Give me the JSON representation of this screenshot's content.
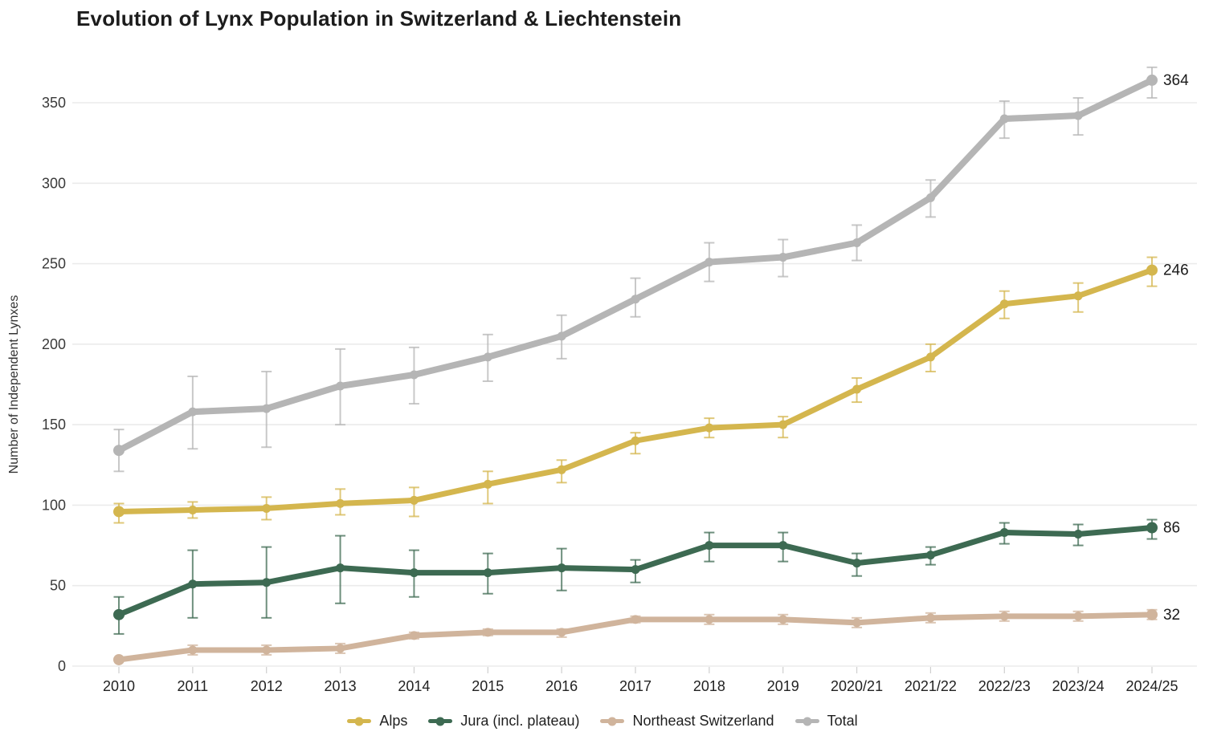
{
  "chart_data": {
    "type": "line",
    "title": "Evolution of Lynx Population in Switzerland & Liechtenstein",
    "xlabel": "",
    "ylabel": "Number of Independent Lynxes",
    "categories": [
      "2010",
      "2011",
      "2012",
      "2013",
      "2014",
      "2015",
      "2016",
      "2017",
      "2018",
      "2019",
      "2020/21",
      "2021/22",
      "2022/23",
      "2023/24",
      "2024/25"
    ],
    "ylim": [
      0,
      370
    ],
    "yticks": [
      0,
      50,
      100,
      150,
      200,
      250,
      300,
      350
    ],
    "grid": "horizontal",
    "legend_position": "bottom",
    "series": [
      {
        "name": "Alps",
        "color": "#d4b64e",
        "values": [
          96,
          97,
          98,
          101,
          103,
          113,
          122,
          140,
          148,
          150,
          172,
          192,
          225,
          230,
          246
        ],
        "err_low": [
          89,
          92,
          91,
          94,
          93,
          101,
          114,
          132,
          142,
          142,
          164,
          183,
          216,
          220,
          236
        ],
        "err_high": [
          101,
          102,
          105,
          110,
          111,
          121,
          128,
          145,
          154,
          155,
          179,
          200,
          233,
          238,
          254
        ],
        "end_label": "246"
      },
      {
        "name": "Jura (incl. plateau)",
        "color": "#3d6a52",
        "values": [
          32,
          51,
          52,
          61,
          58,
          58,
          61,
          60,
          75,
          75,
          64,
          69,
          83,
          82,
          86
        ],
        "err_low": [
          20,
          30,
          30,
          39,
          43,
          45,
          47,
          52,
          65,
          65,
          56,
          63,
          76,
          75,
          79
        ],
        "err_high": [
          43,
          72,
          74,
          81,
          72,
          70,
          73,
          66,
          83,
          83,
          70,
          74,
          89,
          88,
          91
        ],
        "end_label": "86"
      },
      {
        "name": "Northeast Switzerland",
        "color": "#d0b49c",
        "values": [
          4,
          10,
          10,
          11,
          19,
          21,
          21,
          29,
          29,
          29,
          27,
          30,
          31,
          31,
          32
        ],
        "err_low": [
          4,
          7,
          7,
          8,
          17,
          19,
          18,
          27,
          26,
          26,
          24,
          27,
          28,
          28,
          29
        ],
        "err_high": [
          4,
          13,
          13,
          14,
          21,
          23,
          23,
          31,
          32,
          32,
          30,
          33,
          34,
          34,
          35
        ],
        "end_label": "32"
      },
      {
        "name": "Total",
        "color": "#b5b5b5",
        "values": [
          134,
          158,
          160,
          174,
          181,
          192,
          205,
          228,
          251,
          254,
          263,
          291,
          340,
          342,
          364
        ],
        "err_low": [
          121,
          135,
          136,
          150,
          163,
          177,
          191,
          217,
          239,
          242,
          252,
          279,
          328,
          330,
          353
        ],
        "err_high": [
          147,
          180,
          183,
          197,
          198,
          206,
          218,
          241,
          263,
          265,
          274,
          302,
          351,
          353,
          372
        ],
        "end_label": "364"
      }
    ]
  }
}
